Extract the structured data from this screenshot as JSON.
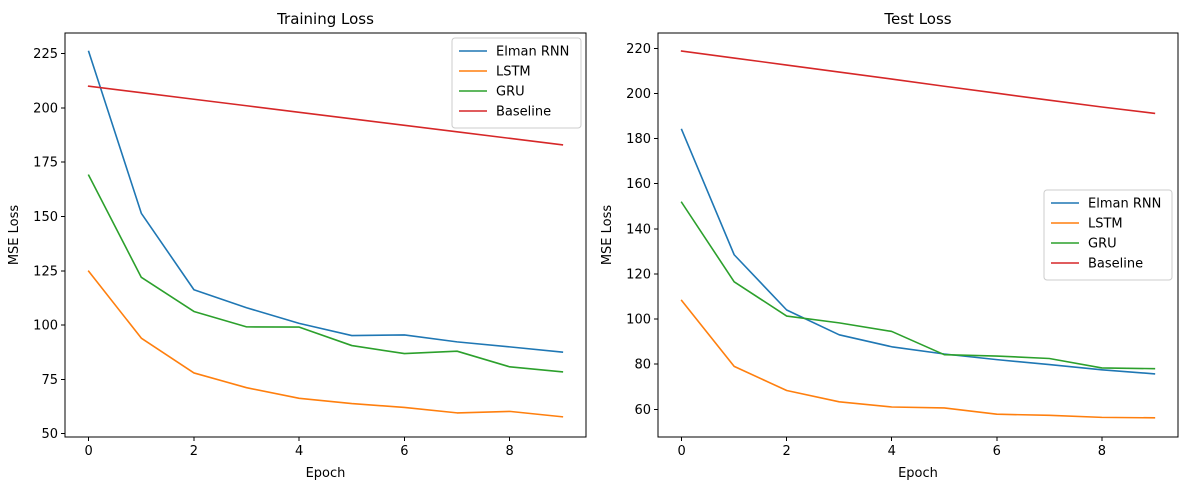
{
  "chart_data": [
    {
      "type": "line",
      "title": "Training Loss",
      "xlabel": "Epoch",
      "ylabel": "MSE Loss",
      "x": [
        0,
        1,
        2,
        3,
        4,
        5,
        6,
        7,
        8,
        9
      ],
      "xlim": [
        -0.45,
        9.45
      ],
      "ylim": [
        48.5,
        234.5
      ],
      "xticks": [
        0,
        2,
        4,
        6,
        8
      ],
      "yticks": [
        50,
        75,
        100,
        125,
        150,
        175,
        200,
        225
      ],
      "grid": false,
      "legend_position": "top-right",
      "series": [
        {
          "name": "Elman RNN",
          "color": "#1f77b4",
          "values": [
            226.0,
            151.5,
            116.3,
            108.0,
            100.8,
            95.2,
            95.5,
            92.3,
            90.0,
            87.6
          ]
        },
        {
          "name": "LSTM",
          "color": "#ff7f0e",
          "values": [
            124.8,
            94.0,
            78.0,
            71.2,
            66.3,
            63.9,
            62.1,
            59.6,
            60.3,
            57.8
          ]
        },
        {
          "name": "GRU",
          "color": "#2ca02c",
          "values": [
            169.0,
            122.0,
            106.3,
            99.2,
            99.1,
            90.6,
            86.9,
            88.0,
            80.8,
            78.5
          ]
        },
        {
          "name": "Baseline",
          "color": "#d62728",
          "values": [
            210.0,
            207.0,
            204.0,
            201.0,
            198.0,
            195.0,
            192.0,
            189.0,
            186.0,
            183.0
          ]
        }
      ]
    },
    {
      "type": "line",
      "title": "Test Loss",
      "xlabel": "Epoch",
      "ylabel": "MSE Loss",
      "x": [
        0,
        1,
        2,
        3,
        4,
        5,
        6,
        7,
        8,
        9
      ],
      "xlim": [
        -0.45,
        9.45
      ],
      "ylim": [
        47.7,
        226.8
      ],
      "xticks": [
        0,
        2,
        4,
        6,
        8
      ],
      "yticks": [
        60,
        80,
        100,
        120,
        140,
        160,
        180,
        200,
        220
      ],
      "grid": false,
      "legend_position": "center-right",
      "series": [
        {
          "name": "Elman RNN",
          "color": "#1f77b4",
          "values": [
            184.0,
            128.5,
            104.0,
            93.0,
            87.7,
            84.5,
            82.0,
            79.8,
            77.5,
            75.7
          ]
        },
        {
          "name": "LSTM",
          "color": "#ff7f0e",
          "values": [
            108.2,
            79.0,
            68.3,
            63.3,
            61.0,
            60.6,
            57.8,
            57.3,
            56.4,
            56.2
          ]
        },
        {
          "name": "GRU",
          "color": "#2ca02c",
          "values": [
            151.7,
            116.5,
            101.3,
            98.3,
            94.5,
            84.2,
            83.6,
            82.5,
            78.3,
            78.0
          ]
        },
        {
          "name": "Baseline",
          "color": "#d62728",
          "values": [
            218.8,
            215.7,
            212.6,
            209.5,
            206.4,
            203.2,
            200.1,
            197.0,
            194.0,
            191.2
          ]
        }
      ]
    }
  ]
}
